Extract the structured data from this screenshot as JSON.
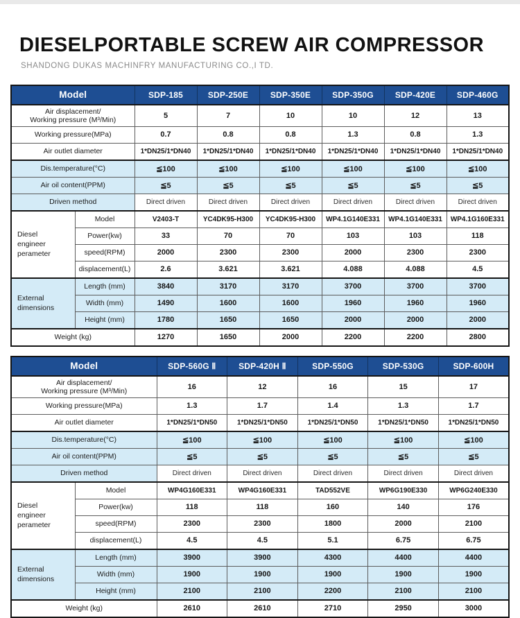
{
  "page": {
    "title": "DIESELPORTABLE SCREW AIR COMPRESSOR",
    "subtitle": "SHANDONG DUKAS MACHINFRY MANUFACTURING CO.,I TD."
  },
  "colors": {
    "header_bg": "#1e4e93",
    "header_text": "#ffffff",
    "row_highlight": "#d4ebf7",
    "border_dark": "#141414"
  },
  "header_label": "Model",
  "row_spec": [
    {
      "key": "air_displacement",
      "label": "Air displacement/\nWorking pressure (M³/Min)",
      "shade": "plain",
      "label_class": "two-line"
    },
    {
      "key": "working_pressure",
      "label": "Working pressure(MPa)",
      "shade": "plain"
    },
    {
      "key": "air_outlet",
      "label": "Air outlet diameter",
      "shade": "plain",
      "value_class": "small"
    },
    {
      "key": "dis_temperature",
      "label": "Dis.temperature(°C)",
      "shade": "blue",
      "section": true
    },
    {
      "key": "air_oil",
      "label": "Air oil content(PPM)",
      "shade": "blue"
    },
    {
      "key": "driven_method",
      "label": "Driven method",
      "shade": "label-blue",
      "value_class": "light"
    },
    {
      "key": "engine_model",
      "label": "Model",
      "shade": "plain",
      "section": true,
      "value_class": "small",
      "group": {
        "label": "Diesel\nengineer\nperameter",
        "span": 4,
        "shade": "plain"
      }
    },
    {
      "key": "power",
      "label": "Power(kw)",
      "shade": "plain",
      "in_group": true
    },
    {
      "key": "speed",
      "label": "speed(RPM)",
      "shade": "plain",
      "in_group": true
    },
    {
      "key": "displacement",
      "label": "displacement(L)",
      "shade": "plain",
      "in_group": true
    },
    {
      "key": "length",
      "label": "Length (mm)",
      "shade": "blue",
      "section": true,
      "group": {
        "label": "External\ndimensions",
        "span": 3,
        "shade": "blue"
      }
    },
    {
      "key": "width",
      "label": "Width (mm)",
      "shade": "blue",
      "in_group": true
    },
    {
      "key": "height",
      "label": "Height (mm)",
      "shade": "blue",
      "in_group": true
    },
    {
      "key": "weight",
      "label": "Weight (kg)",
      "shade": "plain",
      "section": true
    }
  ],
  "tables": [
    {
      "models": [
        "SDP-185",
        "SDP-250E",
        "SDP-350E",
        "SDP-350G",
        "SDP-420E",
        "SDP-460G"
      ],
      "air_displacement": [
        "5",
        "7",
        "10",
        "10",
        "12",
        "13"
      ],
      "working_pressure": [
        "0.7",
        "0.8",
        "0.8",
        "1.3",
        "0.8",
        "1.3"
      ],
      "air_outlet": [
        "1*DN25/1*DN40",
        "1*DN25/1*DN40",
        "1*DN25/1*DN40",
        "1*DN25/1*DN40",
        "1*DN25/1*DN40",
        "1*DN25/1*DN40"
      ],
      "dis_temperature": [
        "≦100",
        "≦100",
        "≦100",
        "≦100",
        "≦100",
        "≦100"
      ],
      "air_oil": [
        "≦5",
        "≦5",
        "≦5",
        "≦5",
        "≦5",
        "≦5"
      ],
      "driven_method": [
        "Direct driven",
        "Direct driven",
        "Direct driven",
        "Direct driven",
        "Direct driven",
        "Direct driven"
      ],
      "engine_model": [
        "V2403-T",
        "YC4DK95-H300",
        "YC4DK95-H300",
        "WP4.1G140E331",
        "WP4.1G140E331",
        "WP4.1G160E331"
      ],
      "power": [
        "33",
        "70",
        "70",
        "103",
        "103",
        "118"
      ],
      "speed": [
        "2000",
        "2300",
        "2300",
        "2000",
        "2300",
        "2300"
      ],
      "displacement": [
        "2.6",
        "3.621",
        "3.621",
        "4.088",
        "4.088",
        "4.5"
      ],
      "length": [
        "3840",
        "3170",
        "3170",
        "3700",
        "3700",
        "3700"
      ],
      "width": [
        "1490",
        "1600",
        "1600",
        "1960",
        "1960",
        "1960"
      ],
      "height": [
        "1780",
        "1650",
        "1650",
        "2000",
        "2000",
        "2000"
      ],
      "weight": [
        "1270",
        "1650",
        "2000",
        "2200",
        "2200",
        "2800"
      ]
    },
    {
      "models": [
        "SDP-560G Ⅱ",
        "SDP-420H Ⅱ",
        "SDP-550G",
        "SDP-530G",
        "SDP-600H"
      ],
      "air_displacement": [
        "16",
        "12",
        "16",
        "15",
        "17"
      ],
      "working_pressure": [
        "1.3",
        "1.7",
        "1.4",
        "1.3",
        "1.7"
      ],
      "air_outlet": [
        "1*DN25/1*DN50",
        "1*DN25/1*DN50",
        "1*DN25/1*DN50",
        "1*DN25/1*DN50",
        "1*DN25/1*DN50"
      ],
      "dis_temperature": [
        "≦100",
        "≦100",
        "≦100",
        "≦100",
        "≦100"
      ],
      "air_oil": [
        "≦5",
        "≦5",
        "≦5",
        "≦5",
        "≦5"
      ],
      "driven_method": [
        "Direct driven",
        "Direct driven",
        "Direct driven",
        "Direct driven",
        "Direct driven"
      ],
      "engine_model": [
        "WP4G160E331",
        "WP4G160E331",
        "TAD552VE",
        "WP6G190E330",
        "WP6G240E330"
      ],
      "power": [
        "118",
        "118",
        "160",
        "140",
        "176"
      ],
      "speed": [
        "2300",
        "2300",
        "1800",
        "2000",
        "2100"
      ],
      "displacement": [
        "4.5",
        "4.5",
        "5.1",
        "6.75",
        "6.75"
      ],
      "length": [
        "3900",
        "3900",
        "4300",
        "4400",
        "4400"
      ],
      "width": [
        "1900",
        "1900",
        "1900",
        "1900",
        "1900"
      ],
      "height": [
        "2100",
        "2100",
        "2200",
        "2100",
        "2100"
      ],
      "weight": [
        "2610",
        "2610",
        "2710",
        "2950",
        "3000"
      ]
    }
  ]
}
